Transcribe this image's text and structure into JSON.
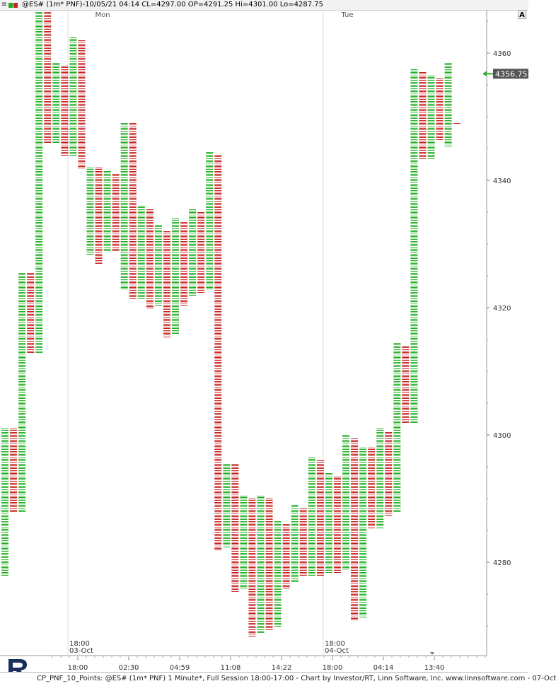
{
  "window": {
    "menu_glyph": "≡",
    "title": "@ES# (1m* PNF)-10/05/21 04:14 CL=4297.00 OP=4291.25 Hi=4301.00 Lo=4287.75",
    "swatch_up_color": "#22aa22",
    "swatch_down_color": "#cc2222",
    "auto_button": "A"
  },
  "footer": {
    "caption": "CP_PNF_10_Points: @ES# (1m* PNF) 1 Minute*, Full Session 18:00-17:00 - Chart by Investor/RT, Linn Software, Inc. www.linnsoftware.com - 07-Oct",
    "logo_icon": "investor-rt-logo"
  },
  "chart_data": {
    "type": "point-and-figure",
    "box_size": 0.25,
    "colors": {
      "up": "#1fae1f",
      "down": "#c81e1e",
      "last_price_bg": "#555555",
      "last_price_marker": "#2fae2f",
      "grid": "#e4e4e4"
    },
    "ylim": [
      4266.5,
      4367.5
    ],
    "y_ticks": [
      4280,
      4300,
      4320,
      4340,
      4360
    ],
    "last_price": "4356.75",
    "day_labels": [
      "Mon",
      "Tue"
    ],
    "session_labels": [
      {
        "time": "18:00",
        "date": "03-Oct"
      },
      {
        "time": "18:00",
        "date": "04-Oct"
      }
    ],
    "x_tick_labels": [
      "18:00",
      "02:30",
      "04:59",
      "11:08",
      "14:22",
      "18:00",
      "04:14",
      "13:40"
    ],
    "columns": [
      {
        "dir": "up",
        "low": 4278.0,
        "high": 4301.0
      },
      {
        "dir": "down",
        "low": 4288.0,
        "high": 4301.0
      },
      {
        "dir": "up",
        "low": 4288.0,
        "high": 4325.5
      },
      {
        "dir": "down",
        "low": 4313.0,
        "high": 4325.5
      },
      {
        "dir": "up",
        "low": 4313.0,
        "high": 4366.5
      },
      {
        "dir": "down",
        "low": 4346.0,
        "high": 4366.5
      },
      {
        "dir": "up",
        "low": 4346.0,
        "high": 4358.5
      },
      {
        "dir": "down",
        "low": 4344.0,
        "high": 4358.0
      },
      {
        "dir": "up",
        "low": 4344.0,
        "high": 4362.5
      },
      {
        "dir": "down",
        "low": 4342.0,
        "high": 4362.0
      },
      {
        "dir": "up",
        "low": 4328.5,
        "high": 4342.0
      },
      {
        "dir": "down",
        "low": 4327.0,
        "high": 4342.0
      },
      {
        "dir": "up",
        "low": 4329.0,
        "high": 4341.5
      },
      {
        "dir": "down",
        "low": 4329.0,
        "high": 4341.0
      },
      {
        "dir": "up",
        "low": 4323.0,
        "high": 4349.0
      },
      {
        "dir": "down",
        "low": 4321.5,
        "high": 4349.0
      },
      {
        "dir": "up",
        "low": 4321.5,
        "high": 4336.0
      },
      {
        "dir": "down",
        "low": 4320.0,
        "high": 4335.5
      },
      {
        "dir": "up",
        "low": 4320.5,
        "high": 4333.0
      },
      {
        "dir": "down",
        "low": 4315.5,
        "high": 4332.0
      },
      {
        "dir": "up",
        "low": 4316.0,
        "high": 4334.0
      },
      {
        "dir": "down",
        "low": 4320.5,
        "high": 4333.5
      },
      {
        "dir": "up",
        "low": 4322.0,
        "high": 4335.5
      },
      {
        "dir": "down",
        "low": 4322.5,
        "high": 4335.0
      },
      {
        "dir": "up",
        "low": 4323.0,
        "high": 4344.5
      },
      {
        "dir": "down",
        "low": 4282.0,
        "high": 4344.0
      },
      {
        "dir": "up",
        "low": 4282.5,
        "high": 4295.5
      },
      {
        "dir": "down",
        "low": 4275.5,
        "high": 4295.5
      },
      {
        "dir": "up",
        "low": 4276.0,
        "high": 4290.5
      },
      {
        "dir": "down",
        "low": 4268.5,
        "high": 4290.0
      },
      {
        "dir": "up",
        "low": 4269.0,
        "high": 4290.5
      },
      {
        "dir": "down",
        "low": 4269.5,
        "high": 4290.0
      },
      {
        "dir": "up",
        "low": 4270.0,
        "high": 4286.5
      },
      {
        "dir": "down",
        "low": 4276.0,
        "high": 4286.0
      },
      {
        "dir": "up",
        "low": 4277.0,
        "high": 4289.0
      },
      {
        "dir": "down",
        "low": 4278.0,
        "high": 4288.5
      },
      {
        "dir": "up",
        "low": 4278.0,
        "high": 4296.5
      },
      {
        "dir": "down",
        "low": 4278.0,
        "high": 4296.0
      },
      {
        "dir": "up",
        "low": 4278.5,
        "high": 4294.0
      },
      {
        "dir": "down",
        "low": 4278.5,
        "high": 4293.5
      },
      {
        "dir": "up",
        "low": 4279.0,
        "high": 4300.0
      },
      {
        "dir": "down",
        "low": 4271.0,
        "high": 4299.5
      },
      {
        "dir": "up",
        "low": 4271.5,
        "high": 4298.0
      },
      {
        "dir": "down",
        "low": 4285.5,
        "high": 4298.0
      },
      {
        "dir": "up",
        "low": 4285.5,
        "high": 4301.0
      },
      {
        "dir": "down",
        "low": 4287.5,
        "high": 4300.5
      },
      {
        "dir": "up",
        "low": 4288.0,
        "high": 4314.5
      },
      {
        "dir": "down",
        "low": 4302.0,
        "high": 4314.0
      },
      {
        "dir": "up",
        "low": 4302.0,
        "high": 4357.5
      },
      {
        "dir": "down",
        "low": 4343.5,
        "high": 4357.0
      },
      {
        "dir": "up",
        "low": 4343.5,
        "high": 4356.5
      },
      {
        "dir": "down",
        "low": 4346.5,
        "high": 4356.0
      },
      {
        "dir": "up",
        "low": 4345.5,
        "high": 4358.5
      },
      {
        "dir": "down",
        "low": 4349.0,
        "high": 4349.0
      }
    ]
  }
}
